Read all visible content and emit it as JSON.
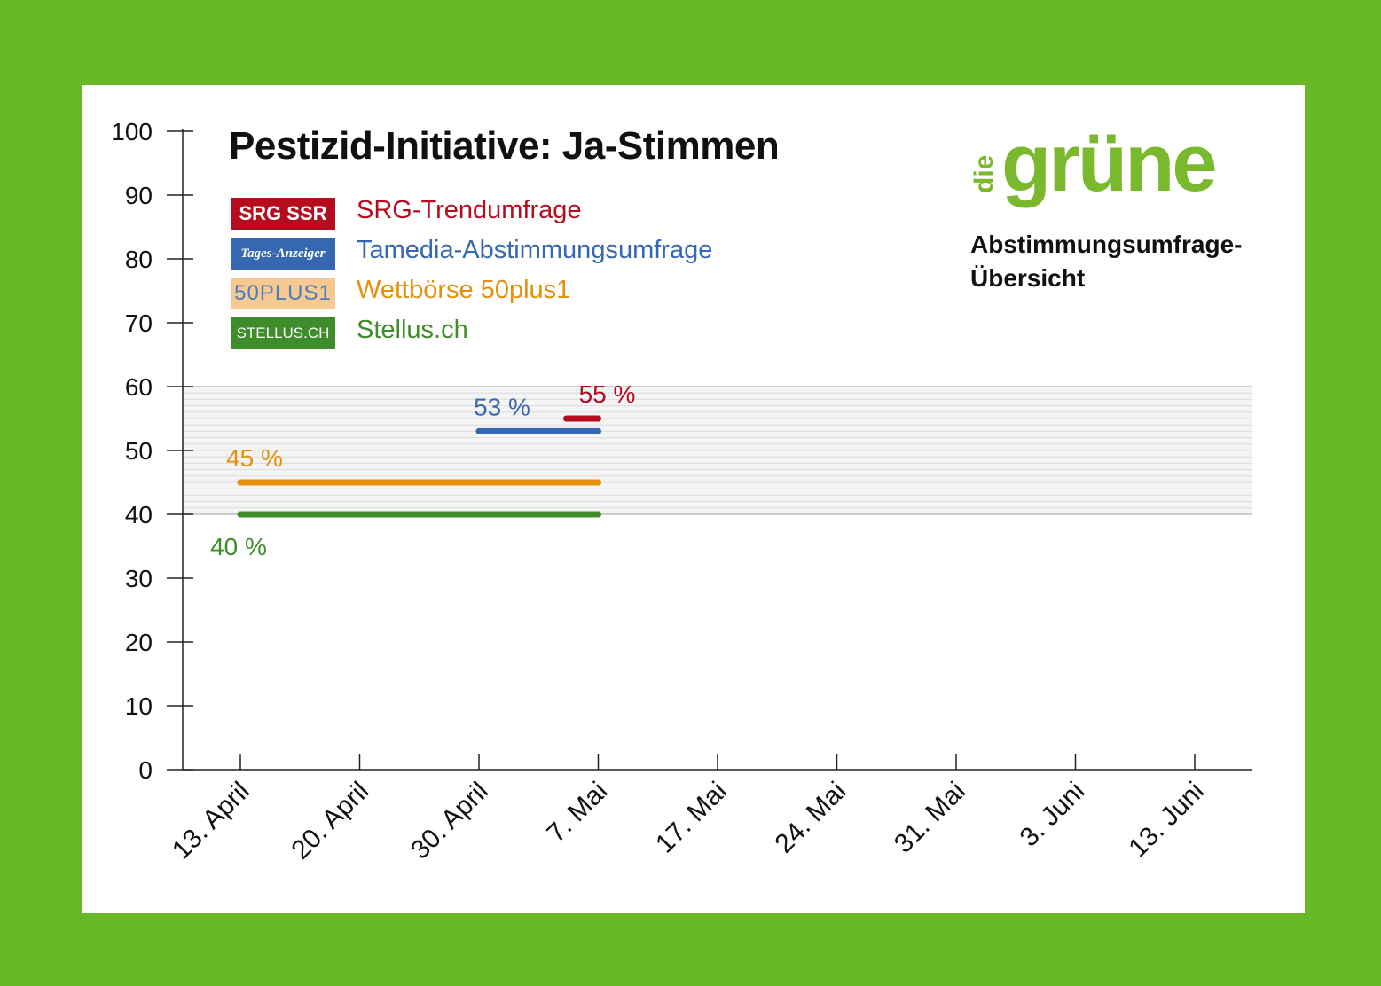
{
  "header": {
    "title": "Pestizid-Initiative: Ja-Stimmen",
    "logo_small": "die",
    "logo_large": "grüne",
    "subtitle_line1": "Abstimmungsumfrage-",
    "subtitle_line2": "Übersicht"
  },
  "legend": [
    {
      "badge": "SRG SSR",
      "label": "SRG-Trendumfrage",
      "color": "#b50d1e"
    },
    {
      "badge": "Tages-Anzeiger",
      "label": "Tamedia-Abstimmungsumfrage",
      "color": "#3668b1"
    },
    {
      "badge": "50PLUS1",
      "label": "Wettbörse 50plus1",
      "color": "#e5900a"
    },
    {
      "badge": "STELLUS.CH",
      "label": "Stellus.ch",
      "color": "#3f8c2a"
    }
  ],
  "colors": {
    "background": "#68b725",
    "card": "#ffffff",
    "logo": "#7ab92e"
  },
  "chart_data": {
    "type": "line",
    "title": "Pestizid-Initiative: Ja-Stimmen",
    "xlabel": "",
    "ylabel": "",
    "ylim": [
      0,
      100
    ],
    "y_ticks": [
      "0",
      "10",
      "20",
      "30",
      "40",
      "50",
      "60",
      "70",
      "80",
      "90",
      "100"
    ],
    "categories": [
      "13. April",
      "20. April",
      "30. April",
      "7. Mai",
      "17. Mai",
      "24. Mai",
      "31. Mai",
      "3. Juni",
      "13. Juni"
    ],
    "highlight_band": [
      40,
      60
    ],
    "series": [
      {
        "name": "SRG-Trendumfrage",
        "color": "#b50d1e",
        "from": "7. Mai",
        "to": "7. Mai",
        "value": 55,
        "data_label": "55 %"
      },
      {
        "name": "Tamedia-Abstimmungsumfrage",
        "color": "#3668b1",
        "from": "30. April",
        "to": "7. Mai",
        "value": 53,
        "data_label": "53 %"
      },
      {
        "name": "Wettbörse 50plus1",
        "color": "#e5900a",
        "from": "13. April",
        "to": "7. Mai",
        "value": 45,
        "data_label": "45 %"
      },
      {
        "name": "Stellus.ch",
        "color": "#3f8c2a",
        "from": "13. April",
        "to": "7. Mai",
        "value": 40,
        "data_label": "40 %"
      }
    ]
  }
}
